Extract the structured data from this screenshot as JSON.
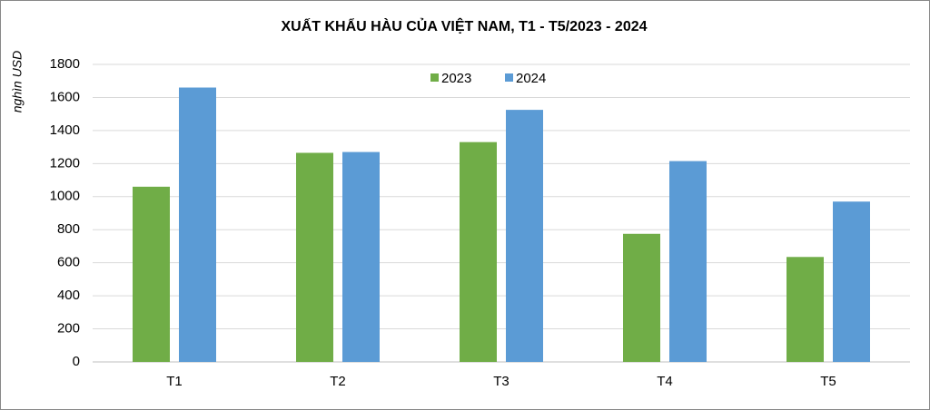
{
  "chart_data": {
    "type": "bar",
    "title": "XUẤT KHẨU HÀU CỦA VIỆT NAM, T1 - T5/2023 - 2024",
    "y_label": "nghìn USD",
    "categories": [
      "T1",
      "T2",
      "T3",
      "T4",
      "T5"
    ],
    "series": [
      {
        "name": "2023",
        "color": "#70ad47",
        "values": [
          1060,
          1265,
          1330,
          775,
          635
        ]
      },
      {
        "name": "2024",
        "color": "#5b9bd5",
        "values": [
          1660,
          1270,
          1525,
          1215,
          970
        ]
      }
    ],
    "ylim": [
      0,
      1800
    ],
    "yticks": [
      0,
      200,
      400,
      600,
      800,
      1000,
      1200,
      1400,
      1600,
      1800
    ],
    "grid": true,
    "legend": "top"
  }
}
